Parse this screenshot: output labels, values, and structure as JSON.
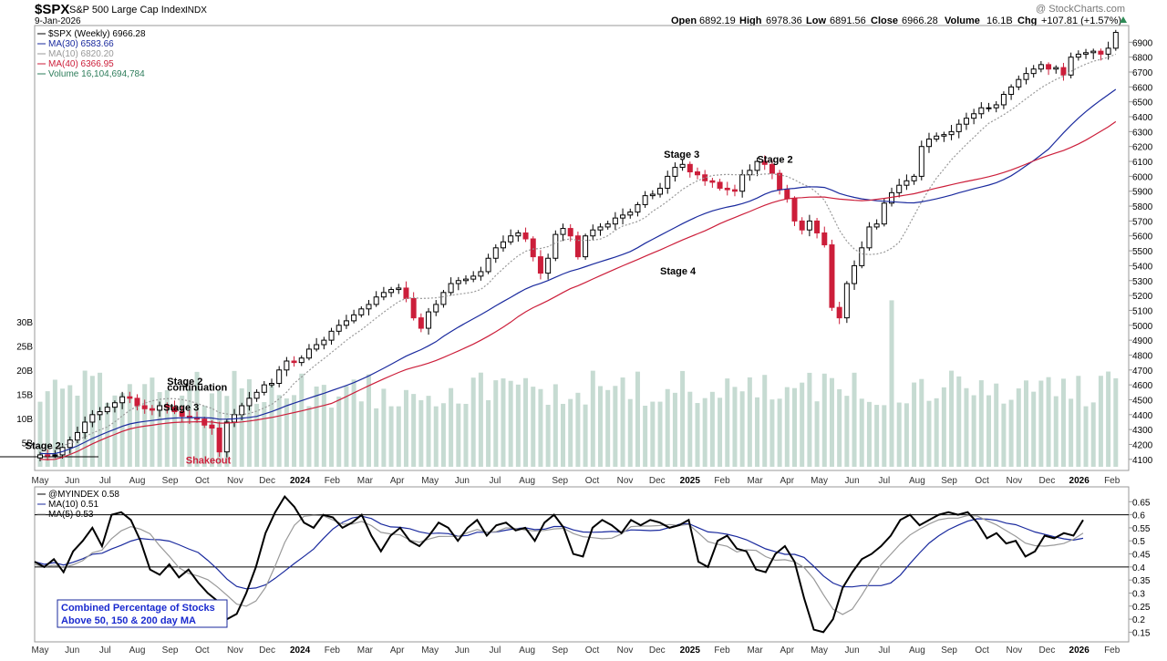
{
  "header": {
    "symbol": "$SPX",
    "name": "S&P 500 Large Cap Index",
    "exchange": "INDX",
    "date": "9-Jan-2026",
    "watermark": "@ StockCharts.com",
    "ohlc": {
      "open_label": "Open",
      "open": "6892.19",
      "high_label": "High",
      "high": "6978.36",
      "low_label": "Low",
      "low": "6891.56",
      "close_label": "Close",
      "close": "6966.28",
      "volume_label": "Volume",
      "volume": "16.1B",
      "chg_label": "Chg",
      "chg": "+107.81 (+1.57%)"
    }
  },
  "colors": {
    "up": "#000000",
    "down": "#cc1e3a",
    "ma30": "#1a2a9e",
    "ma10": "#999999",
    "ma40": "#cc1e3a",
    "volume": "#c6dbd2",
    "indicator": "#000000",
    "ind_ma10": "#1a2a9e",
    "ind_ma5": "#999999",
    "box_border": "#1a2a9e",
    "box_text": "#1a2acf"
  },
  "chart_data": [
    {
      "type": "candlestick",
      "title": "$SPX (Weekly) 6966.28",
      "legend": [
        {
          "label": "$SPX (Weekly) 6966.28",
          "color": "#000000"
        },
        {
          "label": "MA(30) 6583.66",
          "color": "#1a2a9e"
        },
        {
          "label": "MA(10) 6820.20",
          "color": "#999999"
        },
        {
          "label": "MA(40) 6366.95",
          "color": "#cc1e3a"
        },
        {
          "label": "Volume 16,104,694,784",
          "color": "#2e7d5b"
        }
      ],
      "legend_position": "top-left",
      "ylim": [
        4050,
        7000
      ],
      "y_ticks": [
        4100,
        4200,
        4300,
        4400,
        4500,
        4600,
        4700,
        4800,
        4900,
        5000,
        5100,
        5200,
        5300,
        5400,
        5500,
        5600,
        5700,
        5800,
        5900,
        6000,
        6100,
        6200,
        6300,
        6400,
        6500,
        6600,
        6700,
        6800,
        6900
      ],
      "volume_ticks": [
        "5B",
        "10B",
        "15B",
        "20B",
        "25B",
        "30B"
      ],
      "volume_tick_values": [
        5,
        10,
        15,
        20,
        25,
        30
      ],
      "volume_ylim": [
        0,
        40
      ],
      "x_labels": [
        "May",
        "Jun",
        "Jul",
        "Aug",
        "Sep",
        "Oct",
        "Nov",
        "Dec",
        "2024",
        "Feb",
        "Mar",
        "Apr",
        "May",
        "Jun",
        "Jul",
        "Aug",
        "Sep",
        "Oct",
        "Nov",
        "Dec",
        "2025",
        "Feb",
        "Mar",
        "Apr",
        "May",
        "Jun",
        "Jul",
        "Aug",
        "Sep",
        "Oct",
        "Nov",
        "Dec",
        "2026",
        "Feb"
      ],
      "x_label_weeks": [
        0,
        4.3,
        8.7,
        13,
        17.4,
        21.7,
        26.1,
        30.4,
        34.8,
        39.1,
        43.5,
        47.8,
        52.2,
        56.5,
        60.9,
        65.2,
        69.6,
        73.9,
        78.3,
        82.6,
        87,
        91.3,
        95.7,
        100,
        104.3,
        108.7,
        113,
        117.4,
        121.7,
        126.1,
        130.4,
        134.8,
        139.1,
        143.5
      ],
      "weeks_total": 145,
      "candles_close": [
        4130,
        4125,
        4130,
        4180,
        4230,
        4280,
        4350,
        4400,
        4420,
        4450,
        4480,
        4520,
        4510,
        4460,
        4440,
        4430,
        4460,
        4450,
        4420,
        4390,
        4380,
        4370,
        4330,
        4310,
        4150,
        4350,
        4400,
        4460,
        4510,
        4550,
        4600,
        4610,
        4700,
        4760,
        4750,
        4780,
        4840,
        4870,
        4900,
        4960,
        5000,
        5030,
        5070,
        5110,
        5140,
        5190,
        5220,
        5240,
        5250,
        5180,
        5050,
        4980,
        5090,
        5140,
        5220,
        5280,
        5300,
        5310,
        5330,
        5360,
        5450,
        5520,
        5560,
        5600,
        5620,
        5580,
        5460,
        5350,
        5450,
        5610,
        5650,
        5600,
        5460,
        5600,
        5640,
        5660,
        5680,
        5720,
        5740,
        5760,
        5810,
        5870,
        5880,
        5920,
        6000,
        6060,
        6080,
        6030,
        6010,
        5970,
        5960,
        5920,
        5910,
        5900,
        6010,
        6040,
        6100,
        6080,
        6020,
        5910,
        5850,
        5700,
        5640,
        5700,
        5620,
        5540,
        5120,
        5050,
        5280,
        5400,
        5520,
        5660,
        5680,
        5820,
        5890,
        5940,
        5970,
        6000,
        6200,
        6250,
        6270,
        6280,
        6300,
        6350,
        6390,
        6420,
        6460,
        6460,
        6480,
        6550,
        6600,
        6650,
        6690,
        6720,
        6750,
        6720,
        6730,
        6680,
        6800,
        6820,
        6830,
        6840,
        6820,
        6860,
        6966
      ],
      "ma30_start": 4140,
      "ma30_end": 6583.66,
      "ma10_start": 4180,
      "ma10_end": 6820.2,
      "ma40_start": 4100,
      "ma40_end": 6366.95,
      "annotations": [
        {
          "text": "Stage 2",
          "week": -2,
          "price": 4170,
          "color": "#000000"
        },
        {
          "text": "Stage 2",
          "week": 17,
          "price": 4600,
          "color": "#000000"
        },
        {
          "text": "continuation",
          "week": 17,
          "price": 4560,
          "color": "#000000"
        },
        {
          "text": "Stage 3",
          "week": 16.5,
          "price": 4425,
          "color": "#000000"
        },
        {
          "text": "Shakeout",
          "week": 19.5,
          "price": 4070,
          "color": "#cc1e3a"
        },
        {
          "text": "Stage 3",
          "week": 83.5,
          "price": 6125,
          "color": "#000000"
        },
        {
          "text": "Stage 4",
          "week": 83,
          "price": 5340,
          "color": "#000000"
        },
        {
          "text": "Stage 2",
          "week": 96,
          "price": 6090,
          "color": "#000000"
        }
      ]
    },
    {
      "type": "line",
      "title": "@MYINDEX 0.58",
      "legend": [
        {
          "label": "@MYINDEX 0.58",
          "color": "#000000"
        },
        {
          "label": "MA(10) 0.51",
          "color": "#1a2a9e"
        },
        {
          "label": "MA(5) 0.53",
          "color": "#999999"
        }
      ],
      "legend_position": "top-left",
      "ylim": [
        0.12,
        0.7
      ],
      "y_ticks": [
        0.15,
        0.2,
        0.25,
        0.3,
        0.35,
        0.4,
        0.45,
        0.5,
        0.55,
        0.6,
        0.65
      ],
      "reference_lines": [
        0.4,
        0.6
      ],
      "values": [
        0.42,
        0.4,
        0.43,
        0.38,
        0.46,
        0.5,
        0.55,
        0.48,
        0.6,
        0.61,
        0.58,
        0.5,
        0.39,
        0.37,
        0.41,
        0.36,
        0.39,
        0.34,
        0.3,
        0.27,
        0.2,
        0.22,
        0.3,
        0.4,
        0.53,
        0.61,
        0.67,
        0.63,
        0.57,
        0.55,
        0.6,
        0.59,
        0.55,
        0.57,
        0.6,
        0.52,
        0.46,
        0.52,
        0.55,
        0.5,
        0.48,
        0.52,
        0.57,
        0.55,
        0.5,
        0.55,
        0.58,
        0.52,
        0.56,
        0.57,
        0.54,
        0.55,
        0.5,
        0.57,
        0.6,
        0.55,
        0.45,
        0.44,
        0.55,
        0.58,
        0.56,
        0.53,
        0.58,
        0.56,
        0.58,
        0.57,
        0.55,
        0.56,
        0.58,
        0.42,
        0.4,
        0.5,
        0.52,
        0.47,
        0.46,
        0.39,
        0.38,
        0.45,
        0.48,
        0.42,
        0.28,
        0.16,
        0.15,
        0.2,
        0.32,
        0.38,
        0.43,
        0.45,
        0.48,
        0.52,
        0.58,
        0.6,
        0.56,
        0.58,
        0.6,
        0.61,
        0.6,
        0.61,
        0.57,
        0.51,
        0.53,
        0.49,
        0.5,
        0.44,
        0.46,
        0.52,
        0.51,
        0.53,
        0.52,
        0.58
      ],
      "ma10_start": 0.42,
      "ma10_end": 0.51,
      "ma5_start": 0.41,
      "ma5_end": 0.53,
      "box_text": [
        "Combined Percentage of Stocks",
        "Above 50, 150 & 200 day MA"
      ]
    }
  ]
}
